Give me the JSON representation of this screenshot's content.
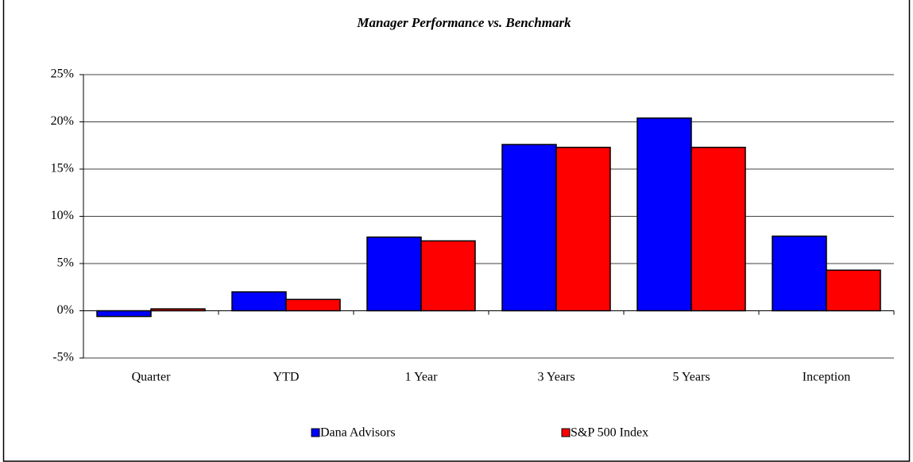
{
  "chart_data": {
    "type": "bar",
    "title": "Manager Performance vs. Benchmark",
    "categories": [
      "Quarter",
      "YTD",
      "1 Year",
      "3 Years",
      "5 Years",
      "Inception"
    ],
    "series": [
      {
        "name": "Dana Advisors",
        "color": "#0000ff",
        "values": [
          -0.6,
          2.0,
          7.8,
          17.6,
          20.4,
          7.9
        ]
      },
      {
        "name": "S&P 500 Index",
        "color": "#ff0000",
        "values": [
          0.2,
          1.2,
          7.4,
          17.3,
          17.3,
          4.3
        ]
      }
    ],
    "ylim": [
      -5,
      25
    ],
    "yticks": [
      {
        "value": -5,
        "label": "-5%"
      },
      {
        "value": 0,
        "label": "0%"
      },
      {
        "value": 5,
        "label": "5%"
      },
      {
        "value": 10,
        "label": "10%"
      },
      {
        "value": 15,
        "label": "15%"
      },
      {
        "value": 20,
        "label": "20%"
      },
      {
        "value": 25,
        "label": "25%"
      }
    ],
    "grid": true,
    "legend": "bottom"
  }
}
